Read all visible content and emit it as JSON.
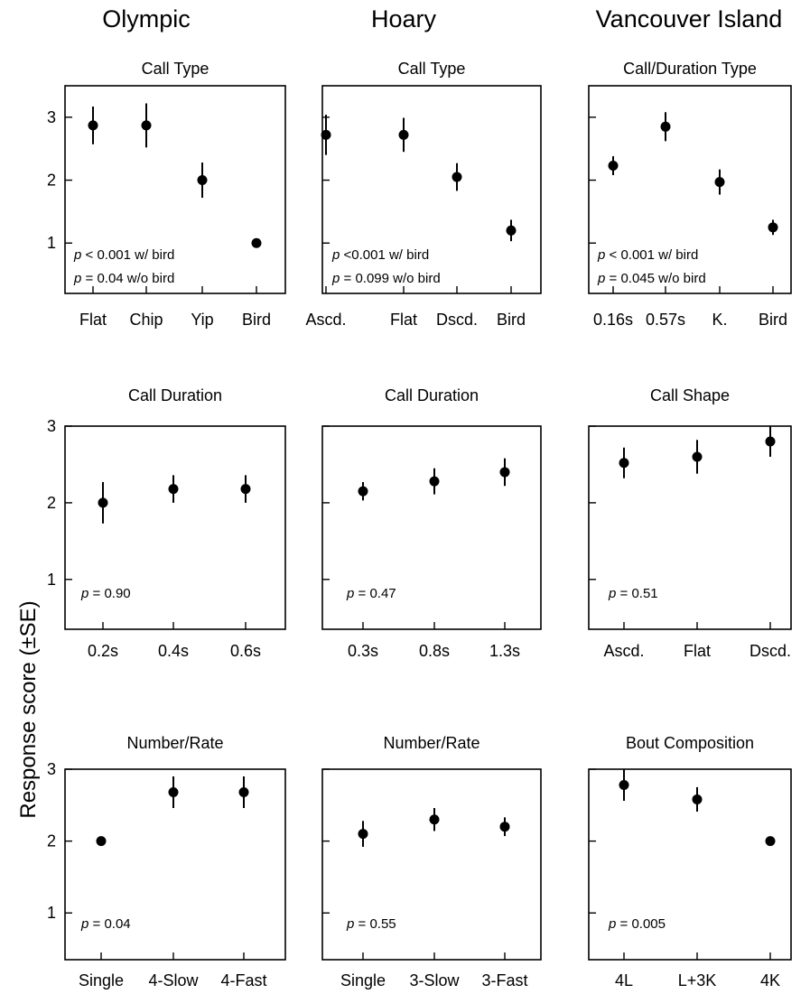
{
  "column_titles": [
    "Olympic",
    "Hoary",
    "Vancouver Island"
  ],
  "ylabel": "Response score (±SE)",
  "colors": {
    "marker": "#000000",
    "axes": "#000000",
    "background": "#ffffff"
  },
  "chart_data": [
    {
      "type": "scatter",
      "title": "Call Type",
      "categories": [
        "Flat",
        "Chip",
        "Yip",
        "Bird"
      ],
      "values": [
        2.87,
        2.87,
        2.0,
        1.0
      ],
      "se": [
        0.3,
        0.35,
        0.28,
        0.0
      ],
      "stats": [
        "< 0.001 w/ bird",
        "= 0.04 w/o bird"
      ],
      "yticks": [
        "1",
        "2",
        "3"
      ],
      "ylim": [
        0.2,
        3.5
      ]
    },
    {
      "type": "scatter",
      "title": "Call Type",
      "categories": [
        "Ascd.",
        "Flat",
        "Dscd.",
        "Bird"
      ],
      "values": [
        2.72,
        2.72,
        2.05,
        1.2
      ],
      "se": [
        0.32,
        0.27,
        0.22,
        0.17
      ],
      "stats": [
        "<0.001 w/ bird",
        "= 0.099 w/o bird"
      ],
      "yticks": [],
      "ylim": [
        0.2,
        3.5
      ]
    },
    {
      "type": "scatter",
      "title": "Call/Duration Type",
      "categories": [
        "0.16s",
        "0.57s",
        "K.",
        "Bird"
      ],
      "values": [
        2.23,
        2.85,
        1.97,
        1.25
      ],
      "se": [
        0.15,
        0.23,
        0.2,
        0.12
      ],
      "stats": [
        "< 0.001 w/ bird",
        "= 0.045 w/o bird"
      ],
      "yticks": [],
      "ylim": [
        0.2,
        3.5
      ]
    },
    {
      "type": "scatter",
      "title": "Call Duration",
      "categories": [
        "0.2s",
        "0.4s",
        "0.6s"
      ],
      "values": [
        2.0,
        2.18,
        2.18
      ],
      "se": [
        0.27,
        0.18,
        0.18
      ],
      "stats": [
        "= 0.90"
      ],
      "yticks": [
        "1",
        "2",
        "3"
      ],
      "ylim": [
        0.35,
        3.0
      ]
    },
    {
      "type": "scatter",
      "title": "Call Duration",
      "categories": [
        "0.3s",
        "0.8s",
        "1.3s"
      ],
      "values": [
        2.15,
        2.28,
        2.4
      ],
      "se": [
        0.12,
        0.17,
        0.18
      ],
      "stats": [
        "= 0.47"
      ],
      "yticks": [],
      "ylim": [
        0.35,
        3.0
      ]
    },
    {
      "type": "scatter",
      "title": "Call Shape",
      "categories": [
        "Ascd.",
        "Flat",
        "Dscd."
      ],
      "values": [
        2.52,
        2.6,
        2.8
      ],
      "se": [
        0.2,
        0.22,
        0.2
      ],
      "stats": [
        "= 0.51"
      ],
      "yticks": [],
      "ylim": [
        0.35,
        3.0
      ]
    },
    {
      "type": "scatter",
      "title": "Number/Rate",
      "categories": [
        "Single",
        "4-Slow",
        "4-Fast"
      ],
      "values": [
        2.0,
        2.68,
        2.68
      ],
      "se": [
        0.0,
        0.22,
        0.22
      ],
      "stats": [
        "= 0.04"
      ],
      "yticks": [
        "1",
        "2",
        "3"
      ],
      "ylim": [
        0.35,
        3.0
      ]
    },
    {
      "type": "scatter",
      "title": "Number/Rate",
      "categories": [
        "Single",
        "3-Slow",
        "3-Fast"
      ],
      "values": [
        2.1,
        2.3,
        2.2
      ],
      "se": [
        0.18,
        0.16,
        0.13
      ],
      "stats": [
        "= 0.55"
      ],
      "yticks": [],
      "ylim": [
        0.35,
        3.0
      ]
    },
    {
      "type": "scatter",
      "title": "Bout Composition",
      "categories": [
        "4L",
        "L+3K",
        "4K"
      ],
      "values": [
        2.78,
        2.58,
        2.0
      ],
      "se": [
        0.22,
        0.17,
        0.0
      ],
      "stats": [
        "= 0.005"
      ],
      "yticks": [],
      "ylim": [
        0.35,
        3.0
      ]
    }
  ]
}
